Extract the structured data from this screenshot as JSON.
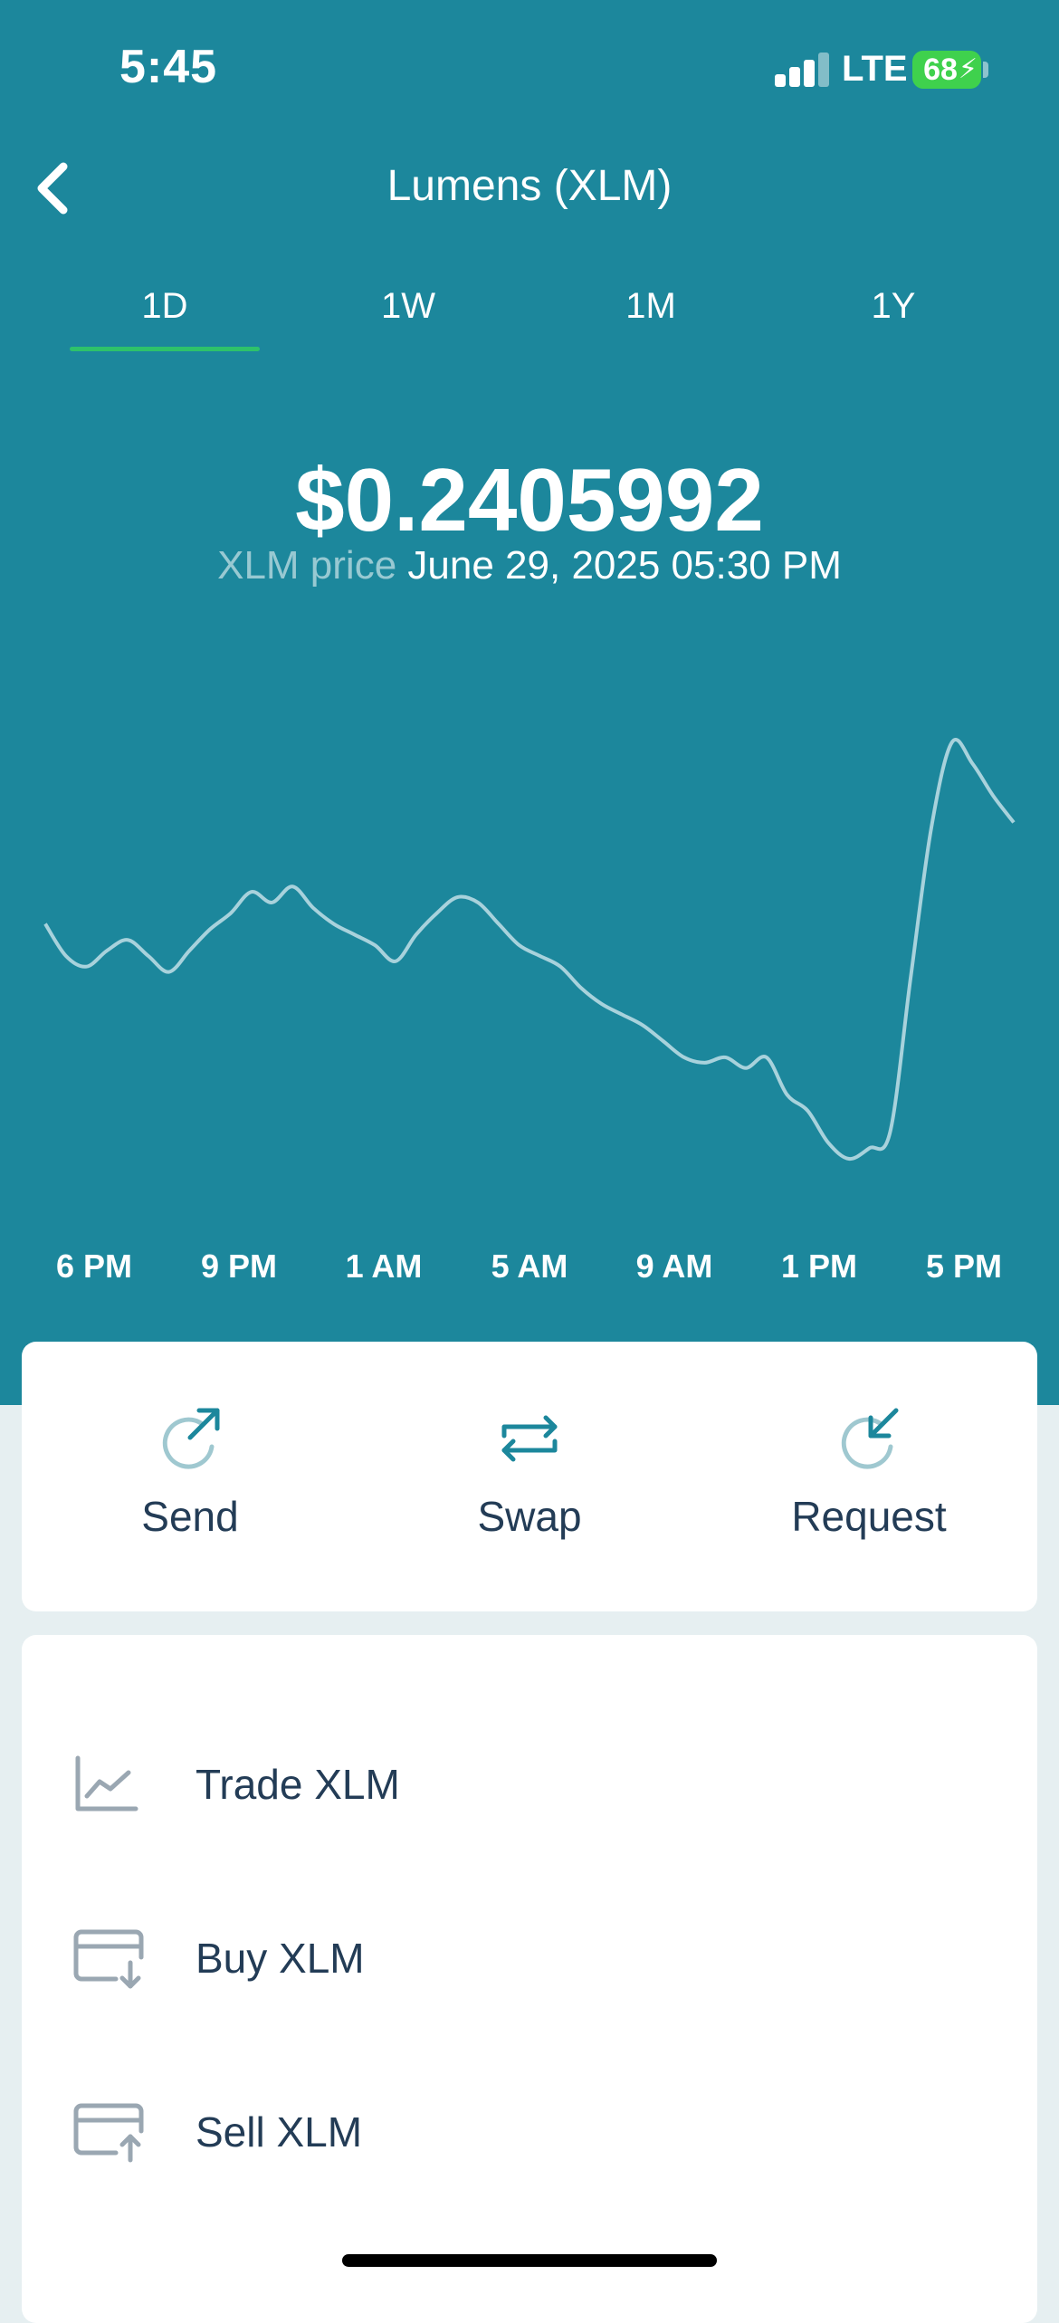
{
  "status_bar": {
    "time": "5:45",
    "network": "LTE",
    "battery": "68",
    "battery_color": "#3fd14d"
  },
  "nav": {
    "back_icon": "chevron-left-icon",
    "title": "Lumens (XLM)"
  },
  "periods": [
    "1D",
    "1W",
    "1M",
    "1Y"
  ],
  "selected_period": "1D",
  "price": {
    "value": "$0.2405992",
    "label": "XLM price",
    "timestamp": "June 29, 2025 05:30 PM"
  },
  "chart_data": {
    "type": "line",
    "x_labels": [
      "6 PM",
      "9 PM",
      "1 AM",
      "5 AM",
      "9 AM",
      "1 PM",
      "5 PM"
    ],
    "series": [
      {
        "values": [
          0.2368,
          0.2362,
          0.236,
          0.2363,
          0.2365,
          0.2362,
          0.2359,
          0.2363,
          0.2367,
          0.237,
          0.2374,
          0.2372,
          0.2375,
          0.2371,
          0.2368,
          0.2366,
          0.2364,
          0.2361,
          0.2366,
          0.237,
          0.2373,
          0.2372,
          0.2368,
          0.2364,
          0.2362,
          0.236,
          0.2356,
          0.2353,
          0.2351,
          0.2349,
          0.2346,
          0.2343,
          0.2342,
          0.2343,
          0.2341,
          0.2343,
          0.2336,
          0.2333,
          0.2327,
          0.2324,
          0.2326,
          0.2329,
          0.2358,
          0.2386,
          0.2402,
          0.2398,
          0.2392,
          0.2387
        ]
      }
    ],
    "line_color": "#a8d2dc"
  },
  "actions": [
    {
      "label": "Send",
      "icon": "send-arrow-icon"
    },
    {
      "label": "Swap",
      "icon": "swap-arrows-icon"
    },
    {
      "label": "Request",
      "icon": "request-arrow-icon"
    }
  ],
  "list": [
    {
      "label": "Trade XLM",
      "icon": "trade-chart-icon"
    },
    {
      "label": "Buy XLM",
      "icon": "buy-card-icon"
    },
    {
      "label": "Sell XLM",
      "icon": "sell-card-icon"
    }
  ],
  "colors": {
    "header_bg": "#1c879c",
    "tab_indicator": "#2ec26b",
    "text_dark": "#233c56",
    "icon_gray": "#9aa7b2"
  }
}
